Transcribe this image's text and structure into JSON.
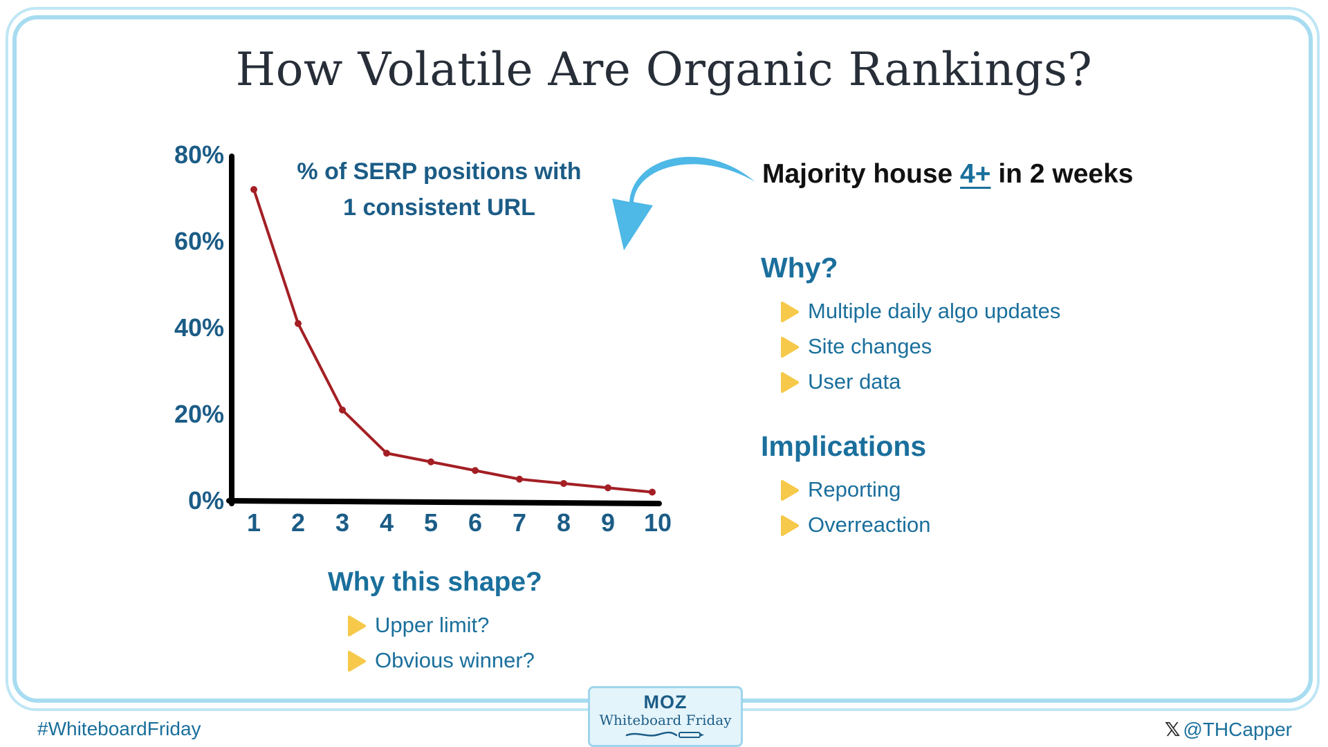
{
  "title": "How Volatile Are Organic Rankings?",
  "chart_data": {
    "type": "line",
    "title": "% of SERP positions with 1 consistent URL",
    "title_lines": [
      "% of SERP positions with",
      "1 consistent URL"
    ],
    "x": [
      1,
      2,
      3,
      4,
      5,
      6,
      7,
      8,
      9,
      10
    ],
    "values": [
      72,
      41,
      21,
      11,
      9,
      7,
      5,
      4,
      3,
      2
    ],
    "y_ticks": [
      "0%",
      "20%",
      "40%",
      "60%",
      "80%"
    ],
    "x_ticks": [
      "1",
      "2",
      "3",
      "4",
      "5",
      "6",
      "7",
      "8",
      "9",
      "10"
    ],
    "ylim": [
      0,
      80
    ],
    "xlabel": "",
    "ylabel": "",
    "grid": false,
    "line_color": "#a31f24"
  },
  "annotation": {
    "prefix": "Majority house ",
    "highlight": "4+",
    "suffix": " in 2 weeks"
  },
  "why": {
    "heading": "Why?",
    "items": [
      "Multiple daily algo updates",
      "Site changes",
      "User data"
    ]
  },
  "implications": {
    "heading": "Implications",
    "items": [
      "Reporting",
      "Overreaction"
    ]
  },
  "shape": {
    "heading": "Why this shape?",
    "items": [
      "Upper limit?",
      "Obvious winner?"
    ]
  },
  "footer": {
    "hashtag": "#WhiteboardFriday",
    "handle": "@THCapper",
    "x_icon": "x-logo-icon"
  },
  "badge": {
    "logo": "MOZ",
    "subtitle": "Whiteboard Friday"
  },
  "colors": {
    "accent": "#1a6f9c",
    "arrow": "#4eb8e6",
    "bullet": "#f6c94a",
    "frame": "#a7dcf1"
  }
}
